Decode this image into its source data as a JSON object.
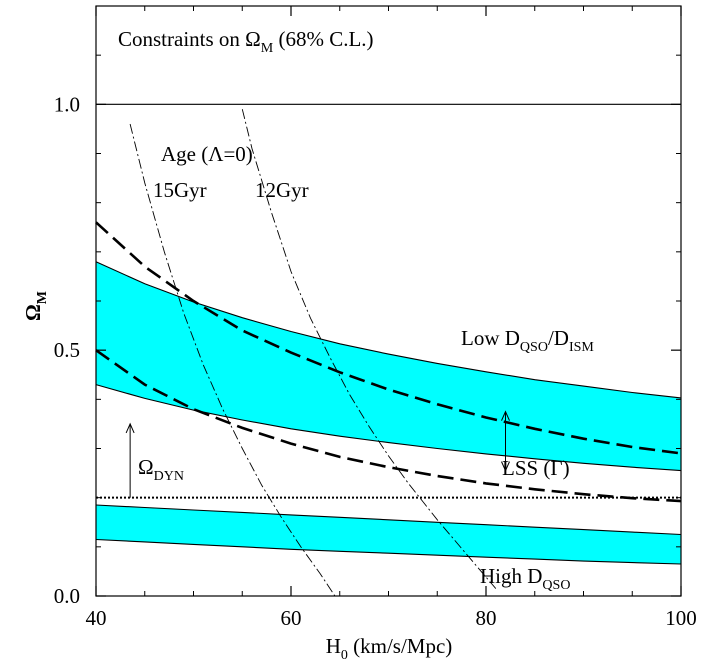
{
  "chart_data": {
    "type": "area",
    "title": {
      "prefix": "Constraints on Ω",
      "sub": "M",
      "suffix": " (68% C.L.)"
    },
    "xlabel": {
      "prefix": "H",
      "sub": "0",
      "suffix": " (km/s/Mpc)"
    },
    "ylabel": {
      "prefix": "Ω",
      "sub": "M"
    },
    "xlim": [
      40,
      100
    ],
    "ylim": [
      0,
      1.2
    ],
    "x_ticks": [
      40,
      60,
      80,
      100
    ],
    "x_tick_labels": [
      "40",
      "60",
      "80",
      "100"
    ],
    "y_ticks": [
      0,
      0.5,
      1.0
    ],
    "y_tick_labels": [
      "0.0",
      "0.5",
      "1.0"
    ],
    "grid": false,
    "colors": {
      "band": "#00ffff",
      "line": "#000000"
    },
    "x": [
      40,
      45,
      50,
      55,
      60,
      65,
      70,
      75,
      80,
      85,
      90,
      95,
      100
    ],
    "series": [
      {
        "id": "low_dqso_upper",
        "kind": "band-edge",
        "values": [
          0.68,
          0.635,
          0.598,
          0.566,
          0.538,
          0.513,
          0.492,
          0.473,
          0.456,
          0.44,
          0.427,
          0.414,
          0.403
        ]
      },
      {
        "id": "low_dqso_lower",
        "kind": "band-edge",
        "values": [
          0.43,
          0.402,
          0.378,
          0.358,
          0.34,
          0.325,
          0.312,
          0.3,
          0.289,
          0.279,
          0.27,
          0.262,
          0.255
        ]
      },
      {
        "id": "high_dqso_upper",
        "kind": "band-edge",
        "values": [
          0.185,
          0.18,
          0.175,
          0.17,
          0.165,
          0.16,
          0.155,
          0.15,
          0.145,
          0.14,
          0.135,
          0.13,
          0.125
        ]
      },
      {
        "id": "high_dqso_lower",
        "kind": "band-edge",
        "values": [
          0.115,
          0.11,
          0.105,
          0.1,
          0.095,
          0.091,
          0.087,
          0.083,
          0.079,
          0.075,
          0.071,
          0.068,
          0.065
        ]
      },
      {
        "id": "dashed_upper",
        "kind": "dashed",
        "values": [
          0.76,
          0.67,
          0.6,
          0.54,
          0.495,
          0.455,
          0.42,
          0.39,
          0.363,
          0.34,
          0.32,
          0.303,
          0.29
        ]
      },
      {
        "id": "dashed_lower",
        "kind": "dashed",
        "values": [
          0.5,
          0.43,
          0.38,
          0.342,
          0.31,
          0.283,
          0.262,
          0.244,
          0.229,
          0.217,
          0.207,
          0.199,
          0.193
        ]
      }
    ],
    "age_curves": [
      {
        "id": "age_15gyr",
        "x": [
          43.5,
          45,
          47,
          49,
          51,
          53,
          55,
          57,
          59,
          61,
          63,
          64.5
        ],
        "values": [
          0.96,
          0.84,
          0.7,
          0.575,
          0.47,
          0.38,
          0.3,
          0.225,
          0.16,
          0.1,
          0.045,
          0.0
        ]
      },
      {
        "id": "age_12gyr",
        "x": [
          55,
          56,
          58,
          60,
          62,
          64,
          66,
          68,
          70,
          72,
          75,
          78,
          81
        ],
        "values": [
          0.99,
          0.91,
          0.78,
          0.66,
          0.565,
          0.485,
          0.41,
          0.345,
          0.285,
          0.23,
          0.155,
          0.085,
          0.015
        ]
      }
    ],
    "reference_lines": [
      {
        "id": "omega_one",
        "y": 1.0,
        "style": "solid"
      },
      {
        "id": "omega_dyn",
        "y": 0.2,
        "style": "dotted"
      }
    ],
    "arrows": [
      {
        "id": "dyn_arrow",
        "x": 43.5,
        "from": 0.2,
        "to": 0.35
      },
      {
        "id": "lss_arrow",
        "x": 82,
        "from": 0.255,
        "to": 0.375
      }
    ],
    "annotations": {
      "age": "Age (Λ=0)",
      "age_15": "15Gyr",
      "age_12": "12Gyr",
      "low": {
        "prefix": "Low D",
        "sub1": "QSO",
        "mid": "/D",
        "sub2": "ISM"
      },
      "lss": "LSS (Γ)",
      "dyn": {
        "prefix": "Ω",
        "sub": "DYN"
      },
      "high": {
        "prefix": "High D",
        "sub": "QSO"
      }
    }
  }
}
